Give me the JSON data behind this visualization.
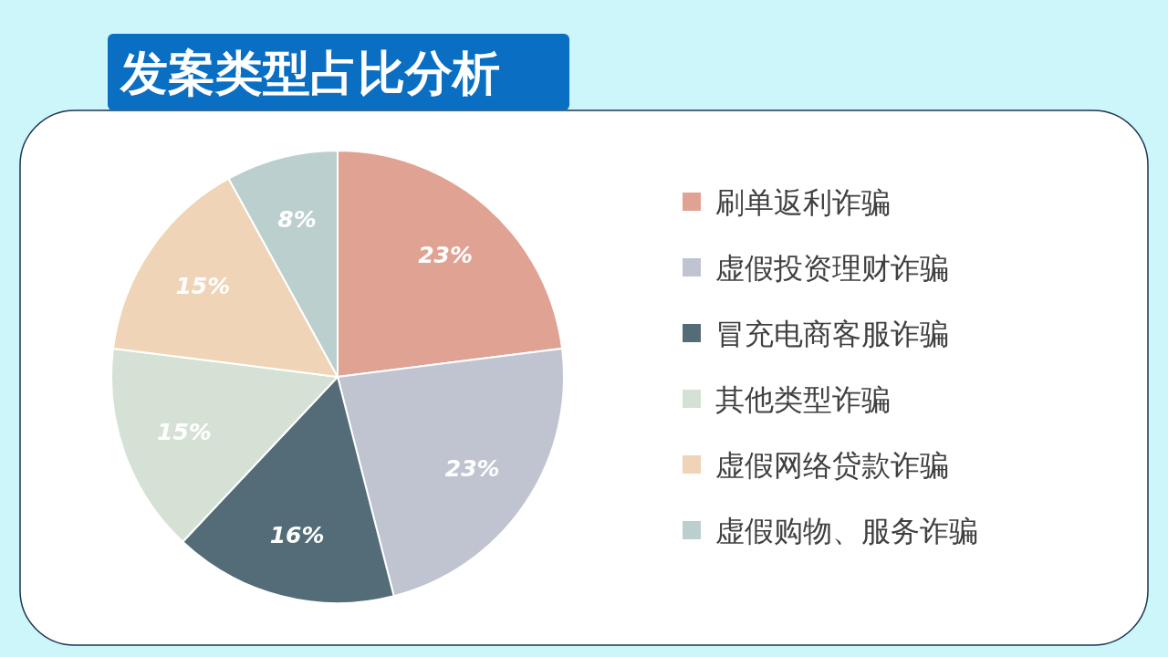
{
  "chart_data": {
    "type": "pie",
    "title": "发案类型占比分析",
    "categories": [
      "刷单返利诈骗",
      "虚假投资理财诈骗",
      "冒充电商客服诈骗",
      "其他类型诈骗",
      "虚假网络贷款诈骗",
      "虚假购物、服务诈骗"
    ],
    "values": [
      23,
      23,
      16,
      15,
      15,
      8
    ],
    "colors": [
      "#e0a292",
      "#c0c4d1",
      "#546c78",
      "#d6e1d6",
      "#efd4b7",
      "#bbd0ce"
    ],
    "value_labels": [
      "23%",
      "23%",
      "16%",
      "15%",
      "15%",
      "8%"
    ],
    "legend": "right"
  }
}
